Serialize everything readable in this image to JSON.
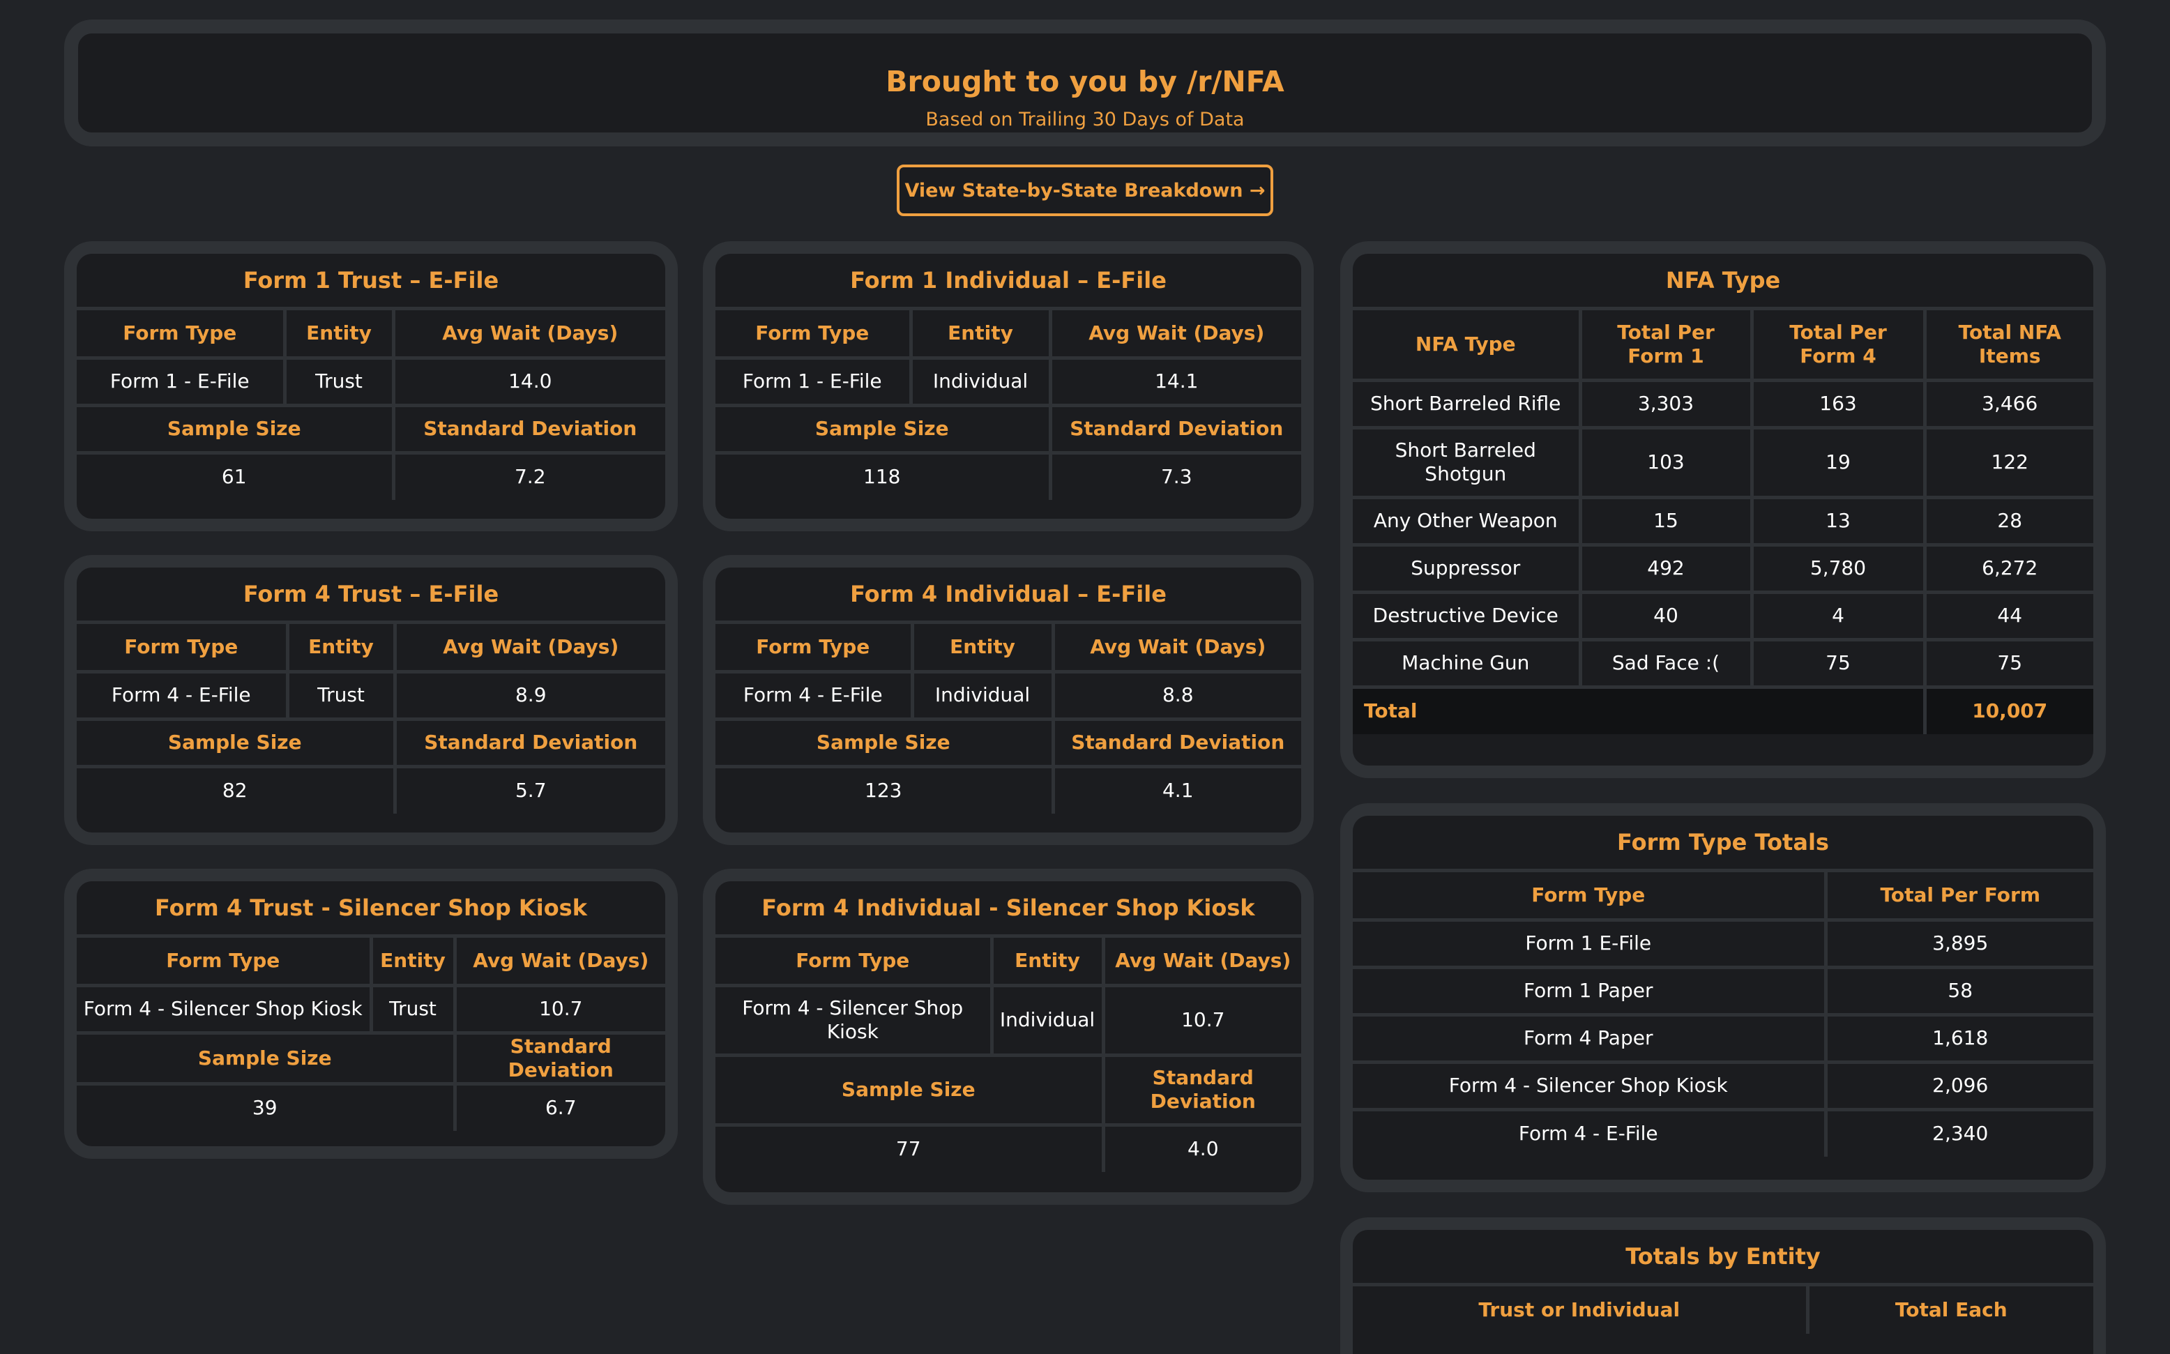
{
  "header": {
    "title": "Brought to you by /r/NFA",
    "subtitle": "Based on Trailing 30 Days of Data"
  },
  "cta": {
    "label": "View State-by-State Breakdown →"
  },
  "labels": {
    "form_type": "Form Type",
    "entity": "Entity",
    "avg_wait": "Avg Wait (Days)",
    "sample_size": "Sample Size",
    "std_dev": "Standard Deviation"
  },
  "cards": {
    "f1_trust_efile": {
      "title": "Form 1 Trust – E-File",
      "form_type": "Form 1 - E-File",
      "entity": "Trust",
      "avg_wait": "14.0",
      "sample_size": "61",
      "std_dev": "7.2"
    },
    "f1_indiv_efile": {
      "title": "Form 1 Individual – E-File",
      "form_type": "Form 1 - E-File",
      "entity": "Individual",
      "avg_wait": "14.1",
      "sample_size": "118",
      "std_dev": "7.3"
    },
    "f4_trust_efile": {
      "title": "Form 4 Trust – E-File",
      "form_type": "Form 4 - E-File",
      "entity": "Trust",
      "avg_wait": "8.9",
      "sample_size": "82",
      "std_dev": "5.7"
    },
    "f4_indiv_efile": {
      "title": "Form 4 Individual – E-File",
      "form_type": "Form 4 - E-File",
      "entity": "Individual",
      "avg_wait": "8.8",
      "sample_size": "123",
      "std_dev": "4.1"
    },
    "f4_trust_kiosk": {
      "title": "Form 4 Trust - Silencer Shop Kiosk",
      "form_type": "Form 4 - Silencer Shop Kiosk",
      "entity": "Trust",
      "avg_wait": "10.7",
      "sample_size": "39",
      "std_dev": "6.7"
    },
    "f4_indiv_kiosk": {
      "title": "Form 4 Individual - Silencer Shop Kiosk",
      "form_type": "Form 4 - Silencer Shop Kiosk",
      "entity": "Individual",
      "avg_wait": "10.7",
      "sample_size": "77",
      "std_dev": "4.0"
    }
  },
  "nfa_type": {
    "title": "NFA Type",
    "headers": [
      "NFA Type",
      "Total Per Form 1",
      "Total Per Form 4",
      "Total NFA Items"
    ],
    "rows": [
      [
        "Short Barreled Rifle",
        "3,303",
        "163",
        "3,466"
      ],
      [
        "Short Barreled Shotgun",
        "103",
        "19",
        "122"
      ],
      [
        "Any Other Weapon",
        "15",
        "13",
        "28"
      ],
      [
        "Suppressor",
        "492",
        "5,780",
        "6,272"
      ],
      [
        "Destructive Device",
        "40",
        "4",
        "44"
      ],
      [
        "Machine Gun",
        "Sad Face :(",
        "75",
        "75"
      ]
    ],
    "total_label": "Total",
    "total_value": "10,007"
  },
  "form_totals": {
    "title": "Form Type Totals",
    "headers": [
      "Form Type",
      "Total Per Form"
    ],
    "rows": [
      [
        "Form 1 E-File",
        "3,895"
      ],
      [
        "Form 1 Paper",
        "58"
      ],
      [
        "Form 4 Paper",
        "1,618"
      ],
      [
        "Form 4 - Silencer Shop Kiosk",
        "2,096"
      ],
      [
        "Form 4 - E-File",
        "2,340"
      ]
    ]
  },
  "entity_totals": {
    "title": "Totals by Entity",
    "headers": [
      "Trust or Individual",
      "Total Each"
    ]
  },
  "colors": {
    "accent": "#f0a040",
    "background": "#212327",
    "card": "#2f3236",
    "panel": "#1b1c1f"
  }
}
